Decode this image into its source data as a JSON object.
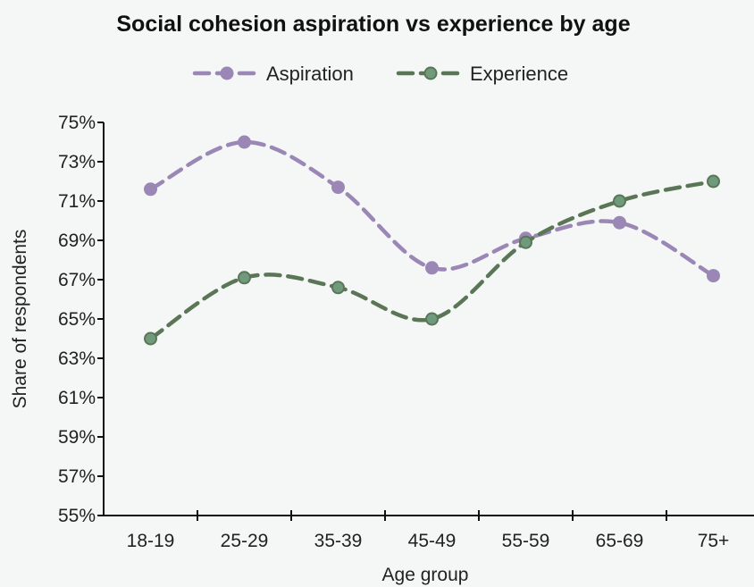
{
  "chart_data": {
    "type": "line",
    "title": "Social cohesion aspiration vs experience by age",
    "xlabel": "Age group",
    "ylabel": "Share of respondents",
    "categories": [
      "18-19",
      "25-29",
      "35-39",
      "45-49",
      "55-59",
      "65-69",
      "75+"
    ],
    "ylim": [
      55,
      75
    ],
    "yticks": [
      "75%",
      "73%",
      "71%",
      "69%",
      "67%",
      "65%",
      "63%",
      "61%",
      "59%",
      "57%",
      "55%"
    ],
    "grid": false,
    "legend_position": "top-center",
    "series": [
      {
        "name": "Aspiration",
        "color": "#9b87b5",
        "values": [
          71.6,
          74.0,
          71.7,
          67.6,
          69.1,
          69.9,
          67.2
        ]
      },
      {
        "name": "Experience",
        "color": "#5a7656",
        "marker_fill": "#6f9a7c",
        "values": [
          64.0,
          67.1,
          66.6,
          65.0,
          68.9,
          71.0,
          72.0
        ]
      }
    ]
  }
}
